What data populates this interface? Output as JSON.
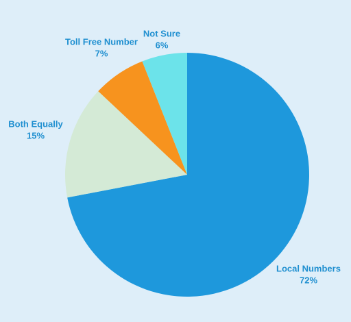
{
  "chart_data": {
    "type": "pie",
    "categories": [
      "Local Numbers",
      "Both Equally",
      "Toll Free Number",
      "Not Sure"
    ],
    "values": [
      72,
      15,
      7,
      6
    ],
    "value_labels": [
      "72%",
      "15%",
      "7%",
      "6%"
    ],
    "colors": [
      "#1e98dc",
      "#d4ead6",
      "#f7931e",
      "#6ce3ea"
    ]
  }
}
